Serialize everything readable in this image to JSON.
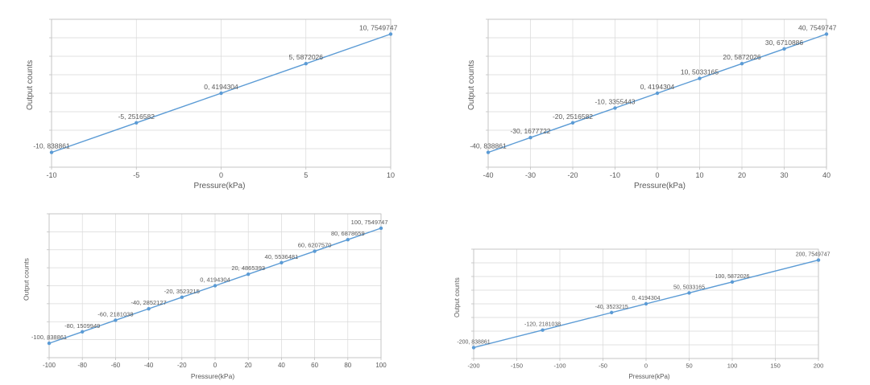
{
  "page": {
    "background": "#ffffff"
  },
  "chart_data": [
    {
      "type": "line",
      "title": "",
      "xlabel": "Pressure(kPa)",
      "ylabel": "Output counts",
      "x": [
        -10,
        -5,
        0,
        5,
        10
      ],
      "y": [
        838861,
        2516582,
        4194304,
        5872026,
        7549747
      ],
      "point_labels": [
        "-10, 838861",
        "-5, 2516582",
        "0, 4194304",
        "5, 5872026",
        "10, 7549747"
      ],
      "xticks": [
        -10,
        -5,
        0,
        5,
        10
      ],
      "xlim": [
        -10,
        10
      ],
      "ylim": [
        0,
        8388608
      ],
      "grid": true,
      "legend": "none",
      "line_color": "#5b9bd5",
      "text_color": "#595959",
      "grid_color": "#d9d9d9",
      "axis_color": "#bfbfbf"
    },
    {
      "type": "line",
      "title": "",
      "xlabel": "Pressure(kPa)",
      "ylabel": "Output counts",
      "x": [
        -40,
        -30,
        -20,
        -10,
        0,
        10,
        20,
        30,
        40
      ],
      "y": [
        838861,
        1677722,
        2516582,
        3355443,
        4194304,
        5033165,
        5872026,
        6710886,
        7549747
      ],
      "point_labels": [
        "-40, 838861",
        "-30, 1677722",
        "-20, 2516582",
        "-10, 3355443",
        "0, 4194304",
        "10, 5033165",
        "20, 5872026",
        "30, 6710886",
        "40, 7549747"
      ],
      "xticks": [
        -40,
        -30,
        -20,
        -10,
        0,
        10,
        20,
        30,
        40
      ],
      "xlim": [
        -40,
        40
      ],
      "ylim": [
        0,
        8388608
      ],
      "grid": true,
      "legend": "none",
      "line_color": "#5b9bd5",
      "text_color": "#595959",
      "grid_color": "#d9d9d9",
      "axis_color": "#bfbfbf"
    },
    {
      "type": "line",
      "title": "",
      "xlabel": "Pressure(kPa)",
      "ylabel": "Output counts",
      "x": [
        -100,
        -80,
        -60,
        -40,
        -20,
        0,
        20,
        40,
        60,
        80,
        100
      ],
      "y": [
        838861,
        1509949,
        2181038,
        2852127,
        3523215,
        4194304,
        4865393,
        5536481,
        6207570,
        6878659,
        7549747
      ],
      "point_labels": [
        "-100, 838861",
        "-80, 1509949",
        "-60, 2181038",
        "-40, 2852127",
        "-20, 3523215",
        "0, 4194304",
        "20, 4865393",
        "40, 5536481",
        "60, 6207570",
        "80, 6878659",
        "100, 7549747"
      ],
      "xticks": [
        -100,
        -80,
        -60,
        -40,
        -20,
        0,
        20,
        40,
        60,
        80,
        100
      ],
      "xlim": [
        -100,
        100
      ],
      "ylim": [
        0,
        8388608
      ],
      "grid": true,
      "legend": "none",
      "line_color": "#5b9bd5",
      "text_color": "#595959",
      "grid_color": "#d9d9d9",
      "axis_color": "#bfbfbf"
    },
    {
      "type": "line",
      "title": "",
      "xlabel": "Pressure(kPa)",
      "ylabel": "Output counts",
      "x": [
        -200,
        -120,
        -40,
        0,
        50,
        100,
        200
      ],
      "y": [
        838861,
        2181038,
        3523215,
        4194304,
        5033165,
        5872026,
        7549747
      ],
      "point_labels": [
        "-200, 838861",
        "-120, 2181038",
        "-40, 3523215",
        "0, 4194304",
        "50, 5033165",
        "100, 5872026",
        "200, 7549747"
      ],
      "xticks": [
        -200,
        -150,
        -100,
        -50,
        0,
        50,
        100,
        150,
        200
      ],
      "xlim": [
        -200,
        200
      ],
      "ylim": [
        0,
        8388608
      ],
      "grid": true,
      "legend": "none",
      "line_color": "#5b9bd5",
      "text_color": "#595959",
      "grid_color": "#d9d9d9",
      "axis_color": "#bfbfbf"
    }
  ]
}
